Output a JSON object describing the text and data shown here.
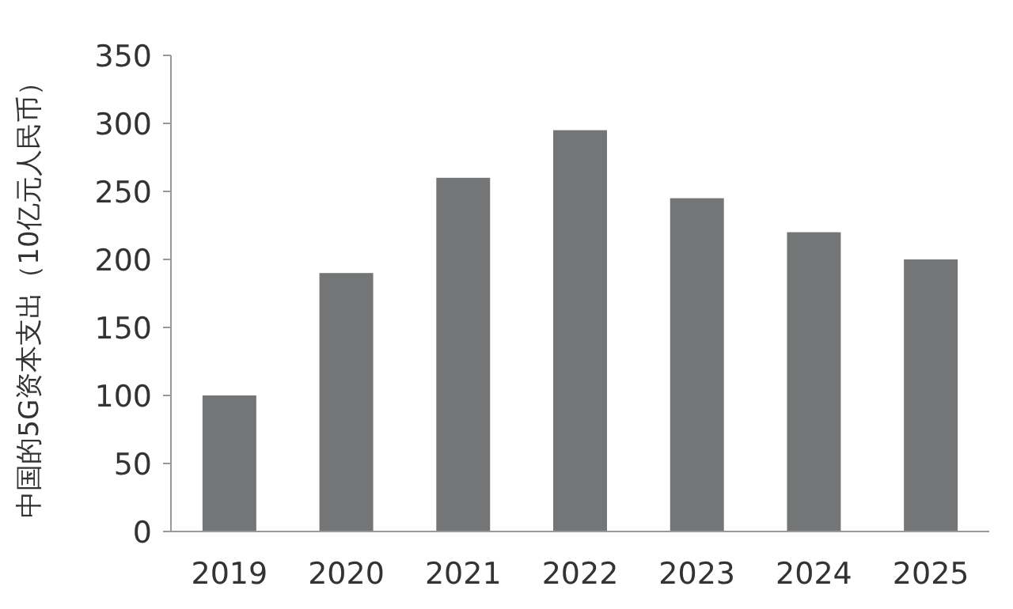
{
  "chart_data": {
    "type": "bar",
    "ylabel": "中国的5G资本支出（10亿元人民币）",
    "categories": [
      "2019",
      "2020",
      "2021",
      "2022",
      "2023",
      "2024",
      "2025"
    ],
    "values": [
      100,
      190,
      260,
      295,
      245,
      220,
      200
    ],
    "color": "#737576",
    "ylim": [
      0,
      350
    ],
    "yticks": [
      0,
      50,
      100,
      150,
      200,
      250,
      300,
      350
    ],
    "grid": false
  }
}
